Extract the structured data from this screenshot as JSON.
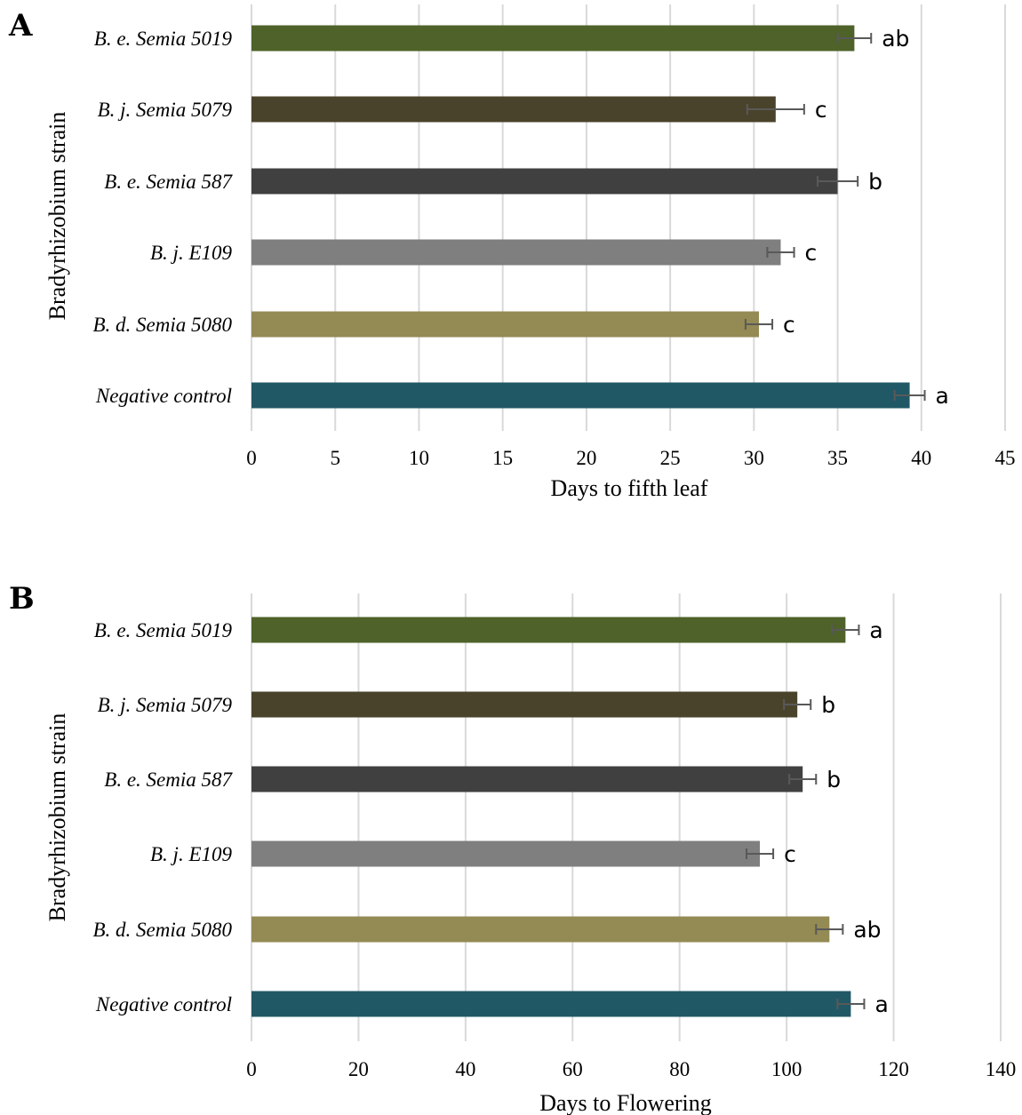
{
  "chart_data": [
    {
      "panel": "A",
      "type": "bar",
      "orientation": "horizontal",
      "categories": [
        "B. e. Semia 5019",
        "B. j. Semia 5079",
        "B. e. Semia 587",
        "B. j. E109",
        "B. d. Semia 5080",
        "Negative control"
      ],
      "values": [
        36.0,
        31.3,
        35.0,
        31.6,
        30.3,
        39.3
      ],
      "errors": [
        1.0,
        1.7,
        1.2,
        0.8,
        0.8,
        0.9
      ],
      "significance": [
        "ab",
        "c",
        "b",
        "c",
        "c",
        "a"
      ],
      "colors": [
        "#4e6229",
        "#4a432b",
        "#404040",
        "#7f7f7f",
        "#948a54",
        "#215866"
      ],
      "xlabel": "Days to fifth leaf",
      "ylabel": "Bradyrhizobium strain",
      "xlim": [
        0,
        45
      ],
      "xticks": [
        0,
        5,
        10,
        15,
        20,
        25,
        30,
        35,
        40,
        45
      ],
      "grid": "vertical"
    },
    {
      "panel": "B",
      "type": "bar",
      "orientation": "horizontal",
      "categories": [
        "B. e. Semia 5019",
        "B. j. Semia 5079",
        "B. e. Semia 587",
        "B. j. E109",
        "B. d. Semia 5080",
        "Negative control"
      ],
      "values": [
        111,
        102,
        103,
        95,
        108,
        112
      ],
      "errors": [
        2.5,
        2.5,
        2.5,
        2.5,
        2.5,
        2.5
      ],
      "significance": [
        "a",
        "b",
        "b",
        "c",
        "ab",
        "a"
      ],
      "colors": [
        "#4e6229",
        "#4a432b",
        "#404040",
        "#7f7f7f",
        "#948a54",
        "#215866"
      ],
      "xlabel": "Days to Flowering",
      "ylabel": "Bradyrhizobium strain",
      "xlim": [
        0,
        140
      ],
      "xticks": [
        0,
        20,
        40,
        60,
        80,
        100,
        120,
        140
      ],
      "grid": "vertical"
    }
  ]
}
